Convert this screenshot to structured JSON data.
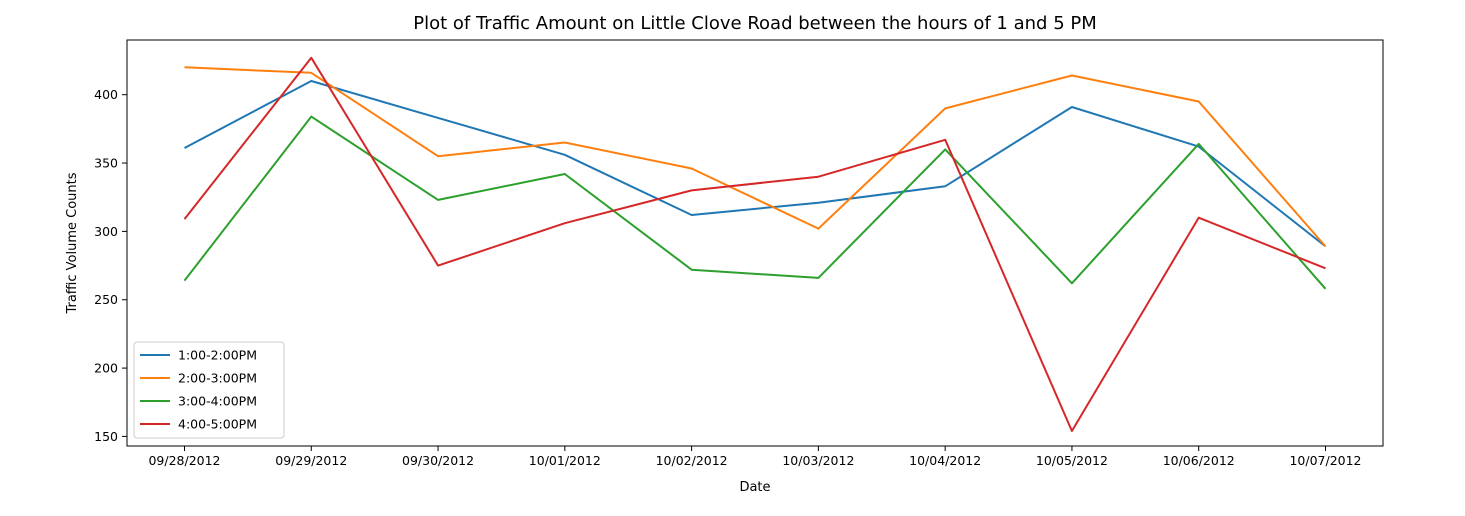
{
  "chart_data": {
    "type": "line",
    "title": "Plot of Traffic Amount on Little Clove Road between the hours of 1 and 5 PM",
    "xlabel": "Date",
    "ylabel": "Traffic Volume Counts",
    "categories": [
      "09/28/2012",
      "09/29/2012",
      "09/30/2012",
      "10/01/2012",
      "10/02/2012",
      "10/03/2012",
      "10/04/2012",
      "10/05/2012",
      "10/06/2012",
      "10/07/2012"
    ],
    "ylim": [
      143,
      440
    ],
    "yticks": [
      150,
      200,
      250,
      300,
      350,
      400
    ],
    "grid": false,
    "legend_position": "lower-left",
    "series": [
      {
        "name": "1:00-2:00PM",
        "color": "#1f77b4",
        "values": [
          361,
          410,
          383,
          356,
          312,
          321,
          333,
          391,
          362,
          289
        ]
      },
      {
        "name": "2:00-3:00PM",
        "color": "#ff7f0e",
        "values": [
          420,
          416,
          355,
          365,
          346,
          302,
          390,
          414,
          395,
          289
        ]
      },
      {
        "name": "3:00-4:00PM",
        "color": "#2ca02c",
        "values": [
          264,
          384,
          323,
          342,
          272,
          266,
          360,
          262,
          364,
          258
        ]
      },
      {
        "name": "4:00-5:00PM",
        "color": "#d62728",
        "values": [
          309,
          427,
          275,
          306,
          330,
          340,
          367,
          154,
          310,
          273
        ]
      }
    ]
  }
}
